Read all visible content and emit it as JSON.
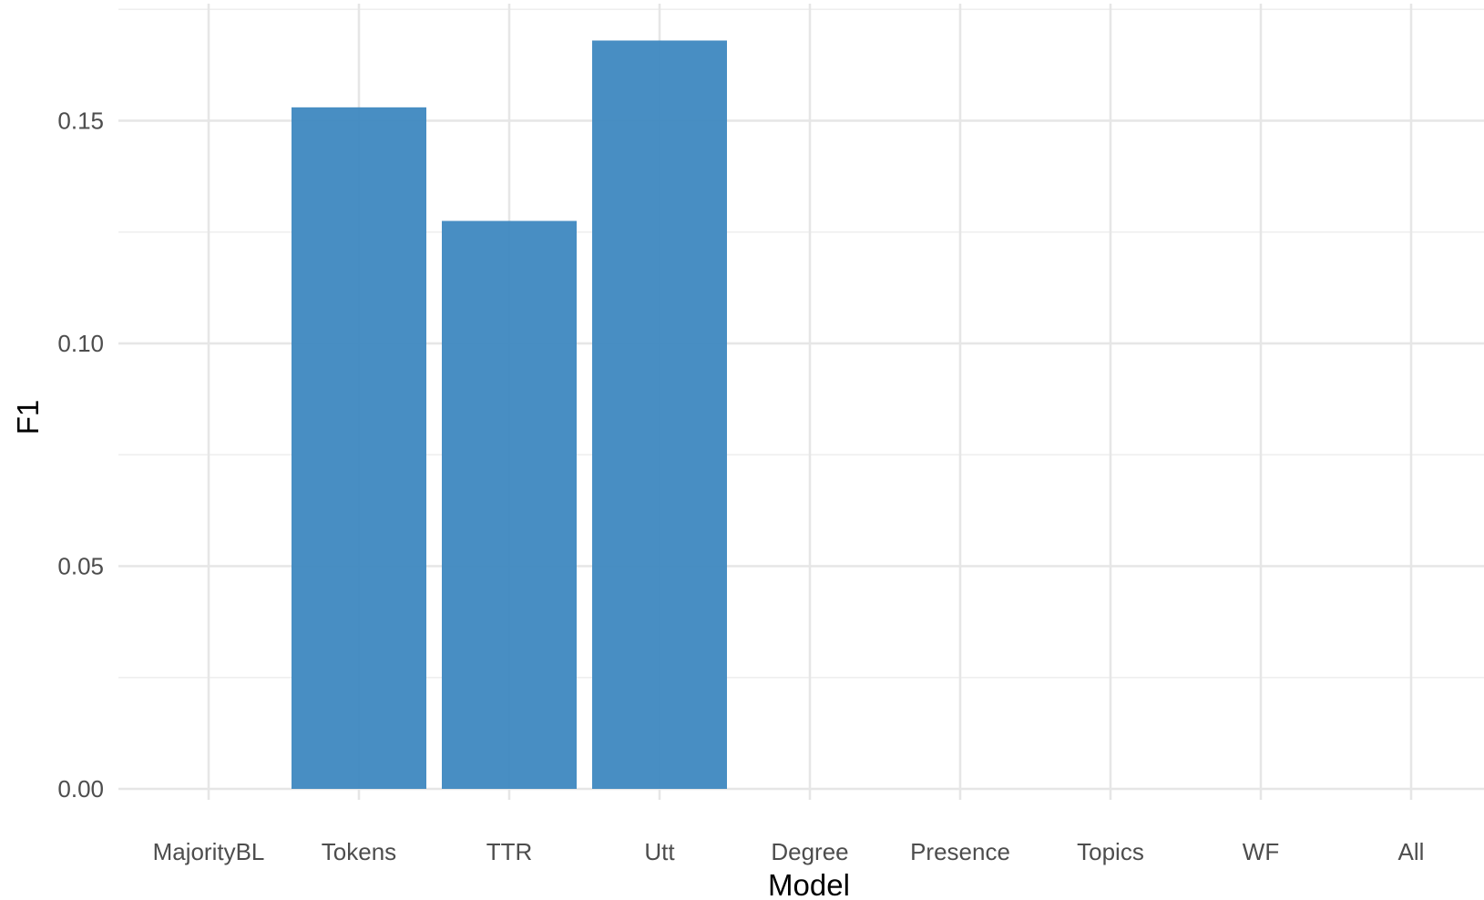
{
  "chart_data": {
    "type": "bar",
    "title": "",
    "xlabel": "Model",
    "ylabel": "F1",
    "categories": [
      "MajorityBL",
      "Tokens",
      "TTR",
      "Utt",
      "Degree",
      "Presence",
      "Topics",
      "WF",
      "All"
    ],
    "values": [
      0,
      0.153,
      0.1275,
      0.168,
      0,
      0,
      0,
      0,
      0
    ],
    "ylim": [
      0,
      0.175
    ],
    "yticks": [
      0.0,
      0.05,
      0.1,
      0.15
    ],
    "ytick_labels": [
      "0.00",
      "0.05",
      "0.10",
      "0.15"
    ],
    "grid": true,
    "legend": "none",
    "bar_color": "#4189C1"
  }
}
